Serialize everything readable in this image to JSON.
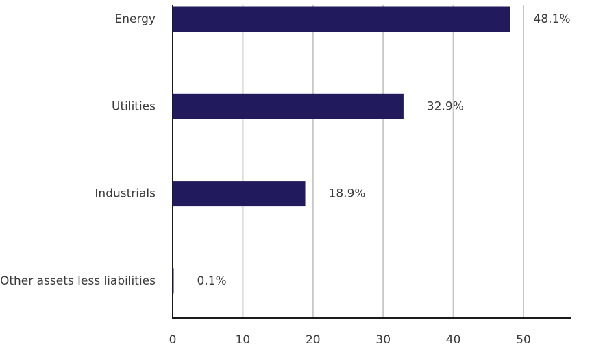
{
  "chart_data": {
    "type": "bar",
    "orientation": "horizontal",
    "title": "",
    "xlabel": "",
    "ylabel": "",
    "categories": [
      "Energy",
      "Utilities",
      "Industrials",
      "Other assets less liabilities"
    ],
    "values": [
      48.1,
      32.9,
      18.9,
      0.1
    ],
    "data_labels": [
      "48.1%",
      "32.9%",
      "18.9%",
      "0.1%"
    ],
    "xlim": [
      0,
      57
    ],
    "xticks": [
      0,
      10,
      20,
      30,
      40,
      50
    ],
    "xtick_labels": [
      "0",
      "10",
      "20",
      "30",
      "40",
      "50"
    ],
    "grid": "vertical",
    "legend": "none",
    "colors": {
      "bar": "#211a5c",
      "grid": "#c8c8c8",
      "axis": "#1a1a1a",
      "text": "#3a3a3a"
    }
  }
}
